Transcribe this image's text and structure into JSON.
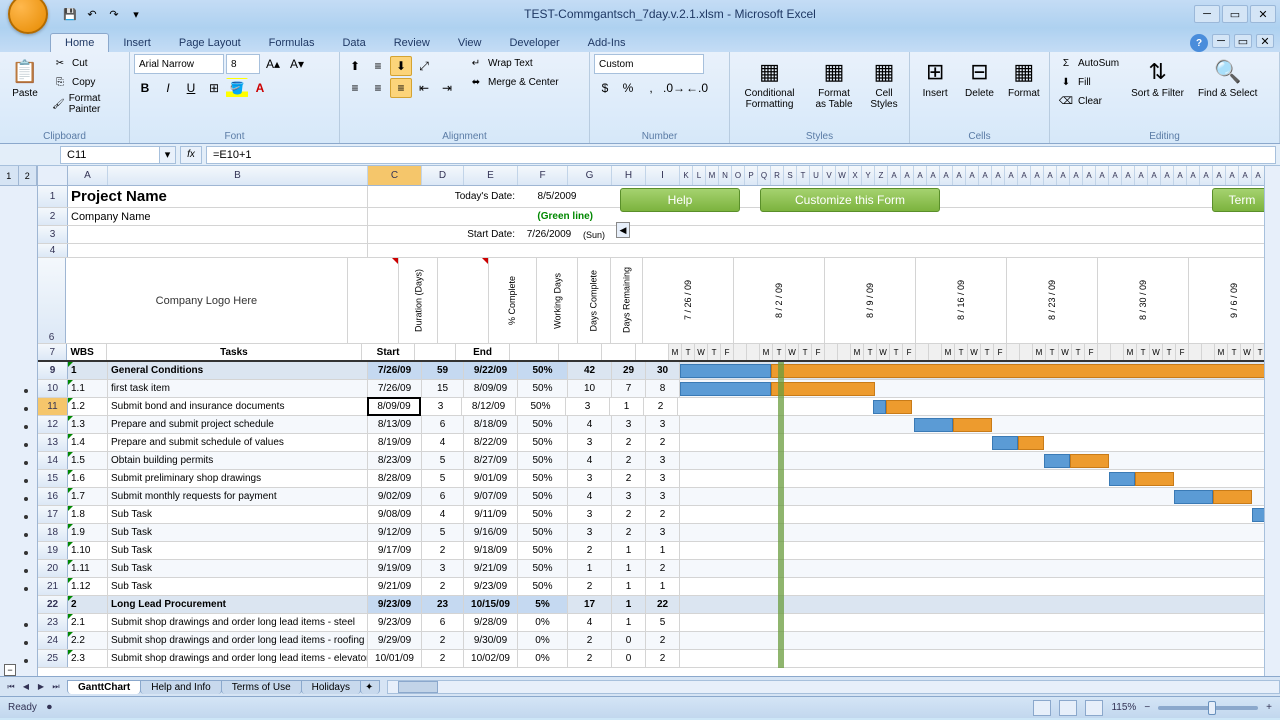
{
  "app": {
    "title": "TEST-Commgantsch_7day.v.2.1.xlsm - Microsoft Excel"
  },
  "tabs": [
    "Home",
    "Insert",
    "Page Layout",
    "Formulas",
    "Data",
    "Review",
    "View",
    "Developer",
    "Add-Ins"
  ],
  "active_tab": 0,
  "ribbon": {
    "clipboard": {
      "label": "Clipboard",
      "paste": "Paste",
      "cut": "Cut",
      "copy": "Copy",
      "painter": "Format Painter"
    },
    "font": {
      "label": "Font",
      "family": "Arial Narrow",
      "size": "8"
    },
    "alignment": {
      "label": "Alignment",
      "wrap": "Wrap Text",
      "merge": "Merge & Center"
    },
    "number": {
      "label": "Number",
      "format": "Custom"
    },
    "styles": {
      "label": "Styles",
      "conditional": "Conditional Formatting",
      "table": "Format as Table",
      "cell": "Cell Styles"
    },
    "cells": {
      "label": "Cells",
      "insert": "Insert",
      "delete": "Delete",
      "format": "Format"
    },
    "editing": {
      "label": "Editing",
      "autosum": "AutoSum",
      "fill": "Fill",
      "clear": "Clear",
      "sort": "Sort & Filter",
      "find": "Find & Select"
    }
  },
  "namebox": "C11",
  "formula": "=E10+1",
  "columns": {
    "A": 40,
    "B": 260,
    "C": 54,
    "D": 42,
    "E": 54,
    "F": 50,
    "G": 44,
    "H": 34,
    "I": 34
  },
  "selected_col": "C",
  "selected_row": 11,
  "header_text": {
    "todays_date_lbl": "Today's Date:",
    "todays_date": "8/5/2009",
    "green_line": "(Green line)",
    "start_date_lbl": "Start Date:",
    "start_date": "7/26/2009",
    "sun": "(Sun)",
    "logo": "Company Logo Here"
  },
  "buttons": {
    "help": "Help",
    "customize": "Customize this Form",
    "term": "Term"
  },
  "project": {
    "name": "Project Name",
    "company": "Company Name"
  },
  "col7": {
    "wbs": "WBS",
    "tasks": "Tasks",
    "start": "Start",
    "duration": "Duration (Days)",
    "end": "End",
    "pct": "% Complete",
    "work": "Working Days",
    "compl": "Days Complete",
    "rem": "Days Remaining"
  },
  "week_dates": [
    "7 / 26 / 09",
    "8 / 2 / 09",
    "8 / 9 / 09",
    "8 / 16 / 09",
    "8 / 23 / 09",
    "8 / 30 / 09",
    "9 / 6 / 09"
  ],
  "day_letters": [
    "M",
    "T",
    "W",
    "T",
    "F",
    "",
    "",
    "M",
    "T",
    "W",
    "T",
    "F",
    "",
    "",
    "M",
    "T",
    "W",
    "T",
    "F",
    "",
    "",
    "M",
    "T",
    "W",
    "T",
    "F",
    "",
    "",
    "M",
    "T",
    "W",
    "T",
    "F",
    "",
    "",
    "M",
    "T",
    "W",
    "T",
    "F",
    "",
    "",
    "M",
    "T",
    "W",
    "T",
    "F"
  ],
  "rows": [
    {
      "r": 9,
      "wbs": "1",
      "task": "General Conditions",
      "start": "7/26/09",
      "dur": "59",
      "end": "9/22/09",
      "pct": "50%",
      "wd": "42",
      "dc": "29",
      "dr": "30",
      "section": true,
      "bar": {
        "start": 0,
        "blue": 7,
        "orange": 40
      }
    },
    {
      "r": 10,
      "wbs": "1.1",
      "task": "first task item",
      "start": "7/26/09",
      "dur": "15",
      "end": "8/09/09",
      "pct": "50%",
      "wd": "10",
      "dc": "7",
      "dr": "8",
      "bar": {
        "start": 0,
        "blue": 7,
        "orange": 8
      }
    },
    {
      "r": 11,
      "wbs": "1.2",
      "task": "Submit bond and insurance documents",
      "start": "8/09/09",
      "dur": "3",
      "end": "8/12/09",
      "pct": "50%",
      "wd": "3",
      "dc": "1",
      "dr": "2",
      "sel": true,
      "bar": {
        "start": 15,
        "blue": 1,
        "orange": 2
      }
    },
    {
      "r": 12,
      "wbs": "1.3",
      "task": "Prepare and submit project schedule",
      "start": "8/13/09",
      "dur": "6",
      "end": "8/18/09",
      "pct": "50%",
      "wd": "4",
      "dc": "3",
      "dr": "3",
      "bar": {
        "start": 18,
        "blue": 3,
        "orange": 3
      }
    },
    {
      "r": 13,
      "wbs": "1.4",
      "task": "Prepare and submit schedule of values",
      "start": "8/19/09",
      "dur": "4",
      "end": "8/22/09",
      "pct": "50%",
      "wd": "3",
      "dc": "2",
      "dr": "2",
      "bar": {
        "start": 24,
        "blue": 2,
        "orange": 2
      }
    },
    {
      "r": 14,
      "wbs": "1.5",
      "task": "Obtain building permits",
      "start": "8/23/09",
      "dur": "5",
      "end": "8/27/09",
      "pct": "50%",
      "wd": "4",
      "dc": "2",
      "dr": "3",
      "bar": {
        "start": 28,
        "blue": 2,
        "orange": 3
      }
    },
    {
      "r": 15,
      "wbs": "1.6",
      "task": "Submit preliminary shop drawings",
      "start": "8/28/09",
      "dur": "5",
      "end": "9/01/09",
      "pct": "50%",
      "wd": "3",
      "dc": "2",
      "dr": "3",
      "bar": {
        "start": 33,
        "blue": 2,
        "orange": 3
      }
    },
    {
      "r": 16,
      "wbs": "1.7",
      "task": "Submit monthly requests for payment",
      "start": "9/02/09",
      "dur": "6",
      "end": "9/07/09",
      "pct": "50%",
      "wd": "4",
      "dc": "3",
      "dr": "3",
      "bar": {
        "start": 38,
        "blue": 3,
        "orange": 3
      }
    },
    {
      "r": 17,
      "wbs": "1.8",
      "task": "Sub Task",
      "start": "9/08/09",
      "dur": "4",
      "end": "9/11/09",
      "pct": "50%",
      "wd": "3",
      "dc": "2",
      "dr": "2",
      "bar": {
        "start": 44,
        "blue": 2,
        "orange": 2
      }
    },
    {
      "r": 18,
      "wbs": "1.9",
      "task": "Sub Task",
      "start": "9/12/09",
      "dur": "5",
      "end": "9/16/09",
      "pct": "50%",
      "wd": "3",
      "dc": "2",
      "dr": "3"
    },
    {
      "r": 19,
      "wbs": "1.10",
      "task": "Sub Task",
      "start": "9/17/09",
      "dur": "2",
      "end": "9/18/09",
      "pct": "50%",
      "wd": "2",
      "dc": "1",
      "dr": "1"
    },
    {
      "r": 20,
      "wbs": "1.11",
      "task": "Sub Task",
      "start": "9/19/09",
      "dur": "3",
      "end": "9/21/09",
      "pct": "50%",
      "wd": "1",
      "dc": "1",
      "dr": "2"
    },
    {
      "r": 21,
      "wbs": "1.12",
      "task": "Sub Task",
      "start": "9/21/09",
      "dur": "2",
      "end": "9/23/09",
      "pct": "50%",
      "wd": "2",
      "dc": "1",
      "dr": "1"
    },
    {
      "r": 22,
      "wbs": "2",
      "task": "Long Lead Procurement",
      "start": "9/23/09",
      "dur": "23",
      "end": "10/15/09",
      "pct": "5%",
      "wd": "17",
      "dc": "1",
      "dr": "22",
      "section": true
    },
    {
      "r": 23,
      "wbs": "2.1",
      "task": "Submit shop drawings and order long lead items - steel",
      "start": "9/23/09",
      "dur": "6",
      "end": "9/28/09",
      "pct": "0%",
      "wd": "4",
      "dc": "1",
      "dr": "5"
    },
    {
      "r": 24,
      "wbs": "2.2",
      "task": "Submit shop drawings and order long lead items - roofing",
      "start": "9/29/09",
      "dur": "2",
      "end": "9/30/09",
      "pct": "0%",
      "wd": "2",
      "dc": "0",
      "dr": "2"
    },
    {
      "r": 25,
      "wbs": "2.3",
      "task": "Submit shop drawings and order long lead items - elevator",
      "start": "10/01/09",
      "dur": "2",
      "end": "10/02/09",
      "pct": "0%",
      "wd": "2",
      "dc": "0",
      "dr": "2"
    }
  ],
  "sheet_tabs": [
    "GanttChart",
    "Help and Info",
    "Terms of Use",
    "Holidays"
  ],
  "active_sheet": 0,
  "status": {
    "ready": "Ready",
    "zoom": "115%"
  },
  "colors": {
    "section_bg": "#dbe5f1",
    "gantt_blue": "#5b9bd5",
    "gantt_orange": "#ed9b2e",
    "today_line": "#6a9c3e",
    "col_sel": "#f5c66b"
  }
}
